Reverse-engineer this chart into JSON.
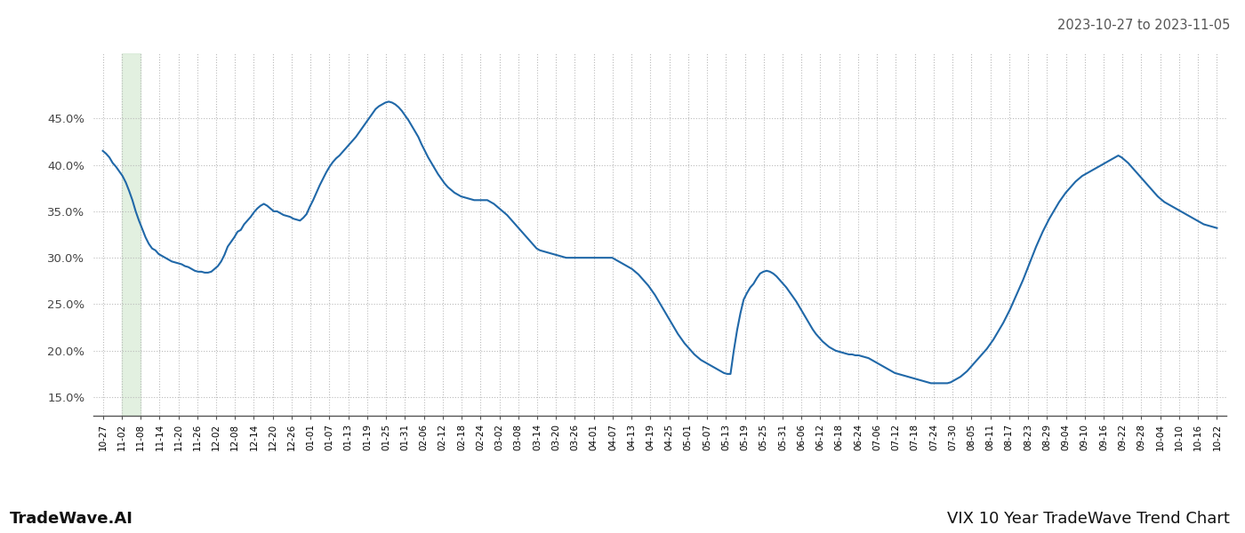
{
  "title_right": "2023-10-27 to 2023-11-05",
  "footer_left": "TradeWave.AI",
  "footer_right": "VIX 10 Year TradeWave Trend Chart",
  "ylim": [
    0.13,
    0.52
  ],
  "yticks": [
    0.15,
    0.2,
    0.25,
    0.3,
    0.35,
    0.4,
    0.45
  ],
  "line_color": "#2068a8",
  "line_width": 1.5,
  "bg_color": "#ffffff",
  "grid_color": "#bbbbbb",
  "highlight_color": "#d6ead4",
  "highlight_alpha": 0.7,
  "title_fontsize": 10.5,
  "footer_fontsize": 13,
  "xtick_labels": [
    "10-27",
    "11-02",
    "11-08",
    "11-14",
    "11-20",
    "11-26",
    "12-02",
    "12-08",
    "12-14",
    "12-20",
    "12-26",
    "01-01",
    "01-07",
    "01-13",
    "01-19",
    "01-25",
    "01-31",
    "02-06",
    "02-12",
    "02-18",
    "02-24",
    "03-02",
    "03-08",
    "03-14",
    "03-20",
    "03-26",
    "04-01",
    "04-07",
    "04-13",
    "04-19",
    "04-25",
    "05-01",
    "05-07",
    "05-13",
    "05-19",
    "05-25",
    "05-31",
    "06-06",
    "06-12",
    "06-18",
    "06-24",
    "07-06",
    "07-12",
    "07-18",
    "07-24",
    "07-30",
    "08-05",
    "08-11",
    "08-17",
    "08-23",
    "08-29",
    "09-04",
    "09-10",
    "09-16",
    "09-22",
    "09-28",
    "10-04",
    "10-10",
    "10-16",
    "10-22"
  ],
  "highlight_xstart": 1.0,
  "highlight_xend": 2.0,
  "n_xticks": 60,
  "y_values": [
    0.415,
    0.412,
    0.408,
    0.402,
    0.398,
    0.393,
    0.388,
    0.381,
    0.372,
    0.362,
    0.35,
    0.34,
    0.331,
    0.322,
    0.315,
    0.31,
    0.308,
    0.304,
    0.302,
    0.3,
    0.298,
    0.296,
    0.295,
    0.294,
    0.293,
    0.291,
    0.29,
    0.288,
    0.286,
    0.285,
    0.285,
    0.284,
    0.284,
    0.285,
    0.288,
    0.291,
    0.296,
    0.303,
    0.312,
    0.317,
    0.322,
    0.328,
    0.33,
    0.336,
    0.34,
    0.344,
    0.349,
    0.353,
    0.356,
    0.358,
    0.356,
    0.353,
    0.35,
    0.35,
    0.348,
    0.346,
    0.345,
    0.344,
    0.342,
    0.341,
    0.34,
    0.343,
    0.347,
    0.355,
    0.362,
    0.37,
    0.378,
    0.385,
    0.392,
    0.398,
    0.403,
    0.407,
    0.41,
    0.414,
    0.418,
    0.422,
    0.426,
    0.43,
    0.435,
    0.44,
    0.445,
    0.45,
    0.455,
    0.46,
    0.463,
    0.465,
    0.467,
    0.468,
    0.467,
    0.465,
    0.462,
    0.458,
    0.453,
    0.448,
    0.442,
    0.436,
    0.43,
    0.422,
    0.415,
    0.408,
    0.402,
    0.396,
    0.39,
    0.385,
    0.38,
    0.376,
    0.373,
    0.37,
    0.368,
    0.366,
    0.365,
    0.364,
    0.363,
    0.362,
    0.362,
    0.362,
    0.362,
    0.362,
    0.36,
    0.358,
    0.355,
    0.352,
    0.349,
    0.346,
    0.342,
    0.338,
    0.334,
    0.33,
    0.326,
    0.322,
    0.318,
    0.314,
    0.31,
    0.308,
    0.307,
    0.306,
    0.305,
    0.304,
    0.303,
    0.302,
    0.301,
    0.3,
    0.3,
    0.3,
    0.3,
    0.3,
    0.3,
    0.3,
    0.3,
    0.3,
    0.3,
    0.3,
    0.3,
    0.3,
    0.3,
    0.3,
    0.298,
    0.296,
    0.294,
    0.292,
    0.29,
    0.288,
    0.285,
    0.282,
    0.278,
    0.274,
    0.27,
    0.265,
    0.26,
    0.254,
    0.248,
    0.242,
    0.236,
    0.23,
    0.224,
    0.218,
    0.213,
    0.208,
    0.204,
    0.2,
    0.196,
    0.193,
    0.19,
    0.188,
    0.186,
    0.184,
    0.182,
    0.18,
    0.178,
    0.176,
    0.175,
    0.175,
    0.2,
    0.222,
    0.24,
    0.255,
    0.262,
    0.268,
    0.272,
    0.278,
    0.283,
    0.285,
    0.286,
    0.285,
    0.283,
    0.28,
    0.276,
    0.272,
    0.268,
    0.263,
    0.258,
    0.253,
    0.247,
    0.241,
    0.235,
    0.229,
    0.223,
    0.218,
    0.214,
    0.21,
    0.207,
    0.204,
    0.202,
    0.2,
    0.199,
    0.198,
    0.197,
    0.196,
    0.196,
    0.195,
    0.195,
    0.194,
    0.193,
    0.192,
    0.19,
    0.188,
    0.186,
    0.184,
    0.182,
    0.18,
    0.178,
    0.176,
    0.175,
    0.174,
    0.173,
    0.172,
    0.171,
    0.17,
    0.169,
    0.168,
    0.167,
    0.166,
    0.165,
    0.165,
    0.165,
    0.165,
    0.165,
    0.165,
    0.166,
    0.168,
    0.17,
    0.172,
    0.175,
    0.178,
    0.182,
    0.186,
    0.19,
    0.194,
    0.198,
    0.202,
    0.207,
    0.212,
    0.218,
    0.224,
    0.23,
    0.237,
    0.244,
    0.252,
    0.26,
    0.268,
    0.276,
    0.285,
    0.294,
    0.303,
    0.312,
    0.32,
    0.328,
    0.335,
    0.342,
    0.348,
    0.354,
    0.36,
    0.365,
    0.37,
    0.374,
    0.378,
    0.382,
    0.385,
    0.388,
    0.39,
    0.392,
    0.394,
    0.396,
    0.398,
    0.4,
    0.402,
    0.404,
    0.406,
    0.408,
    0.41,
    0.408,
    0.405,
    0.402,
    0.398,
    0.394,
    0.39,
    0.386,
    0.382,
    0.378,
    0.374,
    0.37,
    0.366,
    0.363,
    0.36,
    0.358,
    0.356,
    0.354,
    0.352,
    0.35,
    0.348,
    0.346,
    0.344,
    0.342,
    0.34,
    0.338,
    0.336,
    0.335,
    0.334,
    0.333,
    0.332
  ]
}
